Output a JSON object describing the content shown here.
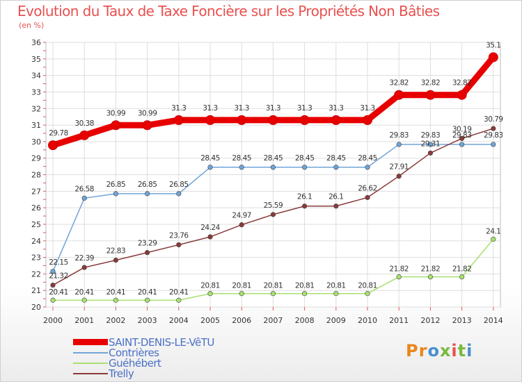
{
  "title": "Evolution du Taux de Taxe Foncière sur les Propriétés Non Bâties",
  "subtitle": "(en %)",
  "brand": "Proxiti",
  "brand_colors": [
    "#e8871c",
    "#e8871c",
    "#4a8fd0",
    "#78b83c",
    "#e8504f",
    "#78b83c",
    "#4a8fd0"
  ],
  "chart_data": {
    "type": "line",
    "title": "Evolution du Taux de Taxe Foncière sur les Propriétés Non Bâties",
    "ylabel": "(en %)",
    "xlabel": "",
    "ylim": [
      20,
      36
    ],
    "yticks": [
      20,
      21,
      22,
      23,
      24,
      25,
      26,
      27,
      28,
      29,
      30,
      31,
      32,
      33,
      34,
      35,
      36
    ],
    "grid": true,
    "categories": [
      "2000",
      "2001",
      "2002",
      "2003",
      "2004",
      "2005",
      "2006",
      "2007",
      "2008",
      "2009",
      "2010",
      "2011",
      "2012",
      "2013",
      "2014"
    ],
    "series": [
      {
        "name": "SAINT-DENIS-LE-VêTU",
        "color": "#e80000",
        "values": [
          29.78,
          30.38,
          30.99,
          30.99,
          31.3,
          31.3,
          31.3,
          31.3,
          31.3,
          31.3,
          31.3,
          32.82,
          32.82,
          32.82,
          35.1
        ],
        "labels": [
          "29.78",
          "30.38",
          "30.99",
          "30.99",
          "31.3",
          "31.3",
          "31.3",
          "31.3",
          "31.3",
          "31.3",
          "31.3",
          "32.82",
          "32.82",
          "32.82",
          "35.1"
        ]
      },
      {
        "name": "Contrières",
        "color": "#6fa4d8",
        "values": [
          22.15,
          26.58,
          26.85,
          26.85,
          26.85,
          28.45,
          28.45,
          28.45,
          28.45,
          28.45,
          28.45,
          29.83,
          29.83,
          29.83,
          29.83
        ],
        "labels": [
          "22.15",
          "26.58",
          "26.85",
          "26.85",
          "26.85",
          "28.45",
          "28.45",
          "28.45",
          "28.45",
          "28.45",
          "28.45",
          "29.83",
          "29.83",
          "29.83",
          "29.83"
        ]
      },
      {
        "name": "Guéhébert",
        "color": "#a8e070",
        "values": [
          20.41,
          20.41,
          20.41,
          20.41,
          20.41,
          20.81,
          20.81,
          20.81,
          20.81,
          20.81,
          20.81,
          21.82,
          21.82,
          21.82,
          24.1
        ],
        "labels": [
          "20.41",
          "20.41",
          "20.41",
          "20.41",
          "20.41",
          "20.81",
          "20.81",
          "20.81",
          "20.81",
          "20.81",
          "20.81",
          "21.82",
          "21.82",
          "21.82",
          "24.1"
        ]
      },
      {
        "name": "Trelly",
        "color": "#8a3a3a",
        "values": [
          21.32,
          22.39,
          22.83,
          23.29,
          23.76,
          24.24,
          24.97,
          25.59,
          26.1,
          26.1,
          26.62,
          27.91,
          29.31,
          30.19,
          30.79
        ],
        "labels": [
          "21.32",
          "22.39",
          "22.83",
          "23.29",
          "23.76",
          "24.24",
          "24.97",
          "25.59",
          "26.1",
          "26.1",
          "26.62",
          "27.91",
          "29.31",
          "30.19",
          "30.79"
        ]
      }
    ]
  }
}
